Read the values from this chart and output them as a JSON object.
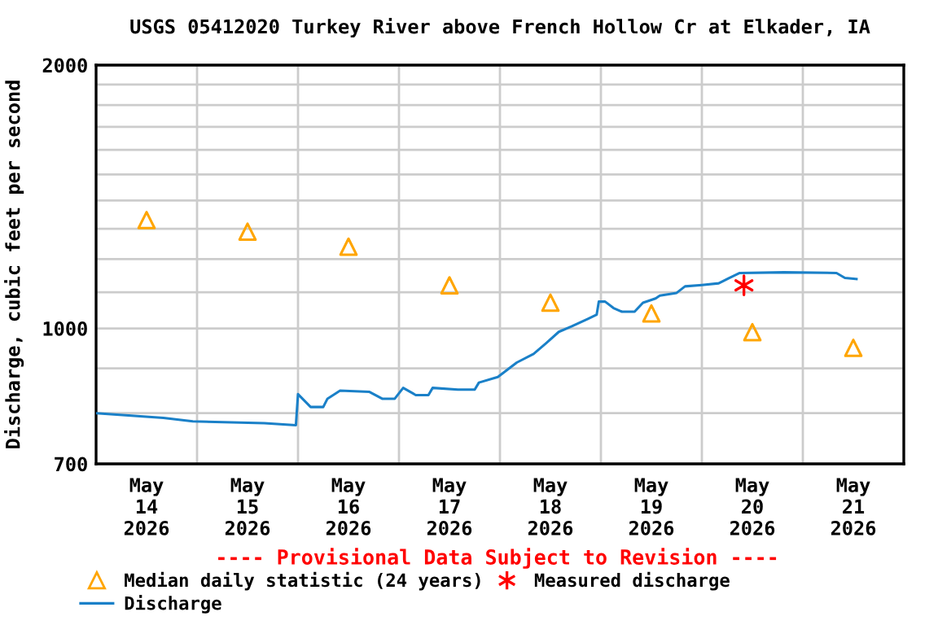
{
  "chart_data": {
    "type": "line",
    "title": "USGS 05412020 Turkey River above French Hollow Cr at Elkader, IA",
    "ylabel": "Discharge, cubic feet per second",
    "annotations": [
      "---- Provisional Data Subject to Revision ----"
    ],
    "log": "y",
    "grid": true,
    "legend": "bottom",
    "xlim": [
      "2026-05-14T00:00",
      "2026-05-22T00:00"
    ],
    "xticks": [
      {
        "value": "2026-05-14T00:00",
        "label": null
      },
      {
        "value": "2026-05-14T12:00",
        "label": "May\n14\n2026"
      },
      {
        "value": "2026-05-15T00:00",
        "label": null
      },
      {
        "value": "2026-05-15T12:00",
        "label": "May\n15\n2026"
      },
      {
        "value": "2026-05-16T00:00",
        "label": null
      },
      {
        "value": "2026-05-16T12:00",
        "label": "May\n16\n2026"
      },
      {
        "value": "2026-05-17T00:00",
        "label": null
      },
      {
        "value": "2026-05-17T12:00",
        "label": "May\n17\n2026"
      },
      {
        "value": "2026-05-18T00:00",
        "label": null
      },
      {
        "value": "2026-05-18T12:00",
        "label": "May\n18\n2026"
      },
      {
        "value": "2026-05-19T00:00",
        "label": null
      },
      {
        "value": "2026-05-19T12:00",
        "label": "May\n19\n2026"
      },
      {
        "value": "2026-05-20T00:00",
        "label": null
      },
      {
        "value": "2026-05-20T12:00",
        "label": "May\n20\n2026"
      },
      {
        "value": "2026-05-21T00:00",
        "label": null
      },
      {
        "value": "2026-05-21T12:00",
        "label": "May\n21\n2026"
      },
      {
        "value": "2026-05-22T00:00",
        "label": null
      }
    ],
    "ylim": [
      700,
      2000
    ],
    "yticks": [
      700,
      {
        "value": 800,
        "label": null
      },
      {
        "value": 900,
        "label": null
      },
      1000,
      {
        "value": 1100,
        "label": null
      },
      {
        "value": 1200,
        "label": null
      },
      {
        "value": 1300,
        "label": null
      },
      {
        "value": 1400,
        "label": null
      },
      {
        "value": 1500,
        "label": null
      },
      {
        "value": 1600,
        "label": null
      },
      {
        "value": 1700,
        "label": null
      },
      {
        "value": 1800,
        "label": null
      },
      {
        "value": 1900,
        "label": null
      },
      2000
    ],
    "series": [
      {
        "name": "Median daily statistic (24 years)",
        "type": "scatter",
        "marker": "triangle",
        "color": "#ffa500",
        "x": [
          "2026-05-14T12:00",
          "2026-05-15T12:00",
          "2026-05-16T12:00",
          "2026-05-17T12:00",
          "2026-05-18T12:00",
          "2026-05-19T12:00",
          "2026-05-20T12:00",
          "2026-05-21T12:00"
        ],
        "values": [
          1330,
          1290,
          1240,
          1120,
          1070,
          1040,
          990,
          950
        ]
      },
      {
        "name": "Measured discharge",
        "type": "scatter",
        "marker": "cross",
        "color": "#ff0000",
        "x": [
          "2026-05-20T10:00"
        ],
        "values": [
          1120
        ]
      },
      {
        "name": "Discharge",
        "type": "line",
        "color": "#1a80c8",
        "x": [
          "2026-05-14T00:00",
          "2026-05-14T16:00",
          "2026-05-14T23:00",
          "2026-05-15T16:00",
          "2026-05-15T23:30",
          "2026-05-16T00:00",
          "2026-05-16T03:00",
          "2026-05-16T06:00",
          "2026-05-16T07:00",
          "2026-05-16T10:00",
          "2026-05-16T17:00",
          "2026-05-16T20:00",
          "2026-05-16T23:00",
          "2026-05-17T01:00",
          "2026-05-17T04:00",
          "2026-05-17T07:00",
          "2026-05-17T08:00",
          "2026-05-17T14:00",
          "2026-05-17T18:00",
          "2026-05-17T19:00",
          "2026-05-17T23:30",
          "2026-05-18T04:00",
          "2026-05-18T08:00",
          "2026-05-18T11:00",
          "2026-05-18T14:00",
          "2026-05-18T17:00",
          "2026-05-18T21:00",
          "2026-05-18T23:00",
          "2026-05-18T23:30",
          "2026-05-19T01:00",
          "2026-05-19T03:00",
          "2026-05-19T05:00",
          "2026-05-19T08:00",
          "2026-05-19T10:00",
          "2026-05-19T13:00",
          "2026-05-19T14:00",
          "2026-05-19T18:00",
          "2026-05-19T20:00",
          "2026-05-20T00:00",
          "2026-05-20T04:00",
          "2026-05-20T06:30",
          "2026-05-20T09:00",
          "2026-05-20T19:30",
          "2026-05-21T08:00",
          "2026-05-21T10:00",
          "2026-05-21T12:45"
        ],
        "values": [
          800,
          790,
          783,
          779,
          775,
          841,
          813,
          813,
          831,
          849,
          846,
          831,
          831,
          855,
          839,
          839,
          855,
          851,
          851,
          867,
          880,
          914,
          935,
          962,
          991,
          1005,
          1026,
          1037,
          1073,
          1073,
          1055,
          1045,
          1045,
          1070,
          1082,
          1090,
          1098,
          1117,
          1121,
          1126,
          1142,
          1157,
          1159,
          1157,
          1142,
          1139
        ]
      }
    ]
  }
}
